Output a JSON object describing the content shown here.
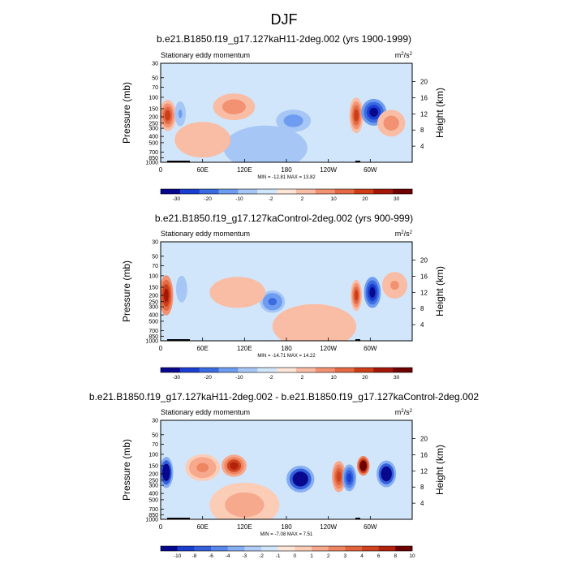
{
  "page_title": "DJF",
  "colors": {
    "diverging_main": [
      "#08088f",
      "#1a3fd0",
      "#3a6be0",
      "#6e9cf0",
      "#a6c6f5",
      "#d2e6fb",
      "#fde6d8",
      "#f9bca4",
      "#f29273",
      "#e36a45",
      "#cc3d18",
      "#a31708",
      "#6e0000"
    ],
    "diverging_diff": [
      "#08088f",
      "#1a3fd0",
      "#3460dc",
      "#5a88ea",
      "#86aef2",
      "#b1cdf7",
      "#d2e6fb",
      "#fde6d8",
      "#fbcdb7",
      "#f6a98c",
      "#ee8563",
      "#e2643d",
      "#cf431e",
      "#b3220c",
      "#6e0000"
    ]
  },
  "chart_data": [
    {
      "type": "contour",
      "title": "b.e21.B1850.f19_g17.127kaH11-2deg.002 (yrs 1900-1999)",
      "subtitle_left": "Stationary eddy momentum",
      "units": {
        "base": "m",
        "sup1": "2",
        "mid": "/s",
        "sup2": "2"
      },
      "ylabel": "Pressure (mb)",
      "ylabel_right": "Height (km)",
      "y_ticks": [
        "30",
        "50",
        "70",
        "100",
        "150",
        "200",
        "250",
        "300",
        "400",
        "500",
        "700",
        "850",
        "1000"
      ],
      "y_values": [
        30,
        50,
        70,
        100,
        150,
        200,
        250,
        300,
        400,
        500,
        700,
        850,
        1000
      ],
      "y_right_ticks": [
        "20",
        "16",
        "12",
        "8",
        "4"
      ],
      "y_right_values": [
        20,
        16,
        12,
        8,
        4
      ],
      "x_ticks": [
        "0",
        "60E",
        "120E",
        "180",
        "120W",
        "60W"
      ],
      "x_values": [
        0,
        60,
        120,
        180,
        240,
        300
      ],
      "xlim": [
        0,
        360
      ],
      "ylim": [
        1000,
        30
      ],
      "stats": "MIN = -12.81  MAX =  13.82",
      "levels": [
        "-30",
        "-20",
        "-10",
        "-2",
        "2",
        "10",
        "20",
        "30"
      ],
      "blobs": [
        {
          "lon": 10,
          "p": 190,
          "rlon": 12,
          "rp": 0.35,
          "amp": 10
        },
        {
          "lon": 28,
          "p": 180,
          "rlon": 8,
          "rp": 0.28,
          "amp": -4
        },
        {
          "lon": 105,
          "p": 140,
          "rlon": 30,
          "rp": 0.3,
          "amp": 5
        },
        {
          "lon": 190,
          "p": 230,
          "rlon": 25,
          "rp": 0.25,
          "amp": -6
        },
        {
          "lon": 280,
          "p": 190,
          "rlon": 10,
          "rp": 0.4,
          "amp": 12
        },
        {
          "lon": 305,
          "p": 170,
          "rlon": 18,
          "rp": 0.3,
          "amp": -13
        },
        {
          "lon": 330,
          "p": 250,
          "rlon": 20,
          "rp": 0.3,
          "amp": 5
        },
        {
          "lon": 150,
          "p": 600,
          "rlon": 60,
          "rp": 0.5,
          "amp": -2
        },
        {
          "lon": 60,
          "p": 450,
          "rlon": 40,
          "rp": 0.4,
          "amp": 3
        }
      ]
    },
    {
      "type": "contour",
      "title": "b.e21.B1850.f19_g17.127kaControl-2deg.002 (yrs 900-999)",
      "subtitle_left": "Stationary eddy momentum",
      "units": {
        "base": "m",
        "sup1": "2",
        "mid": "/s",
        "sup2": "2"
      },
      "ylabel": "Pressure (mb)",
      "ylabel_right": "Height (km)",
      "y_ticks": [
        "30",
        "50",
        "70",
        "100",
        "150",
        "200",
        "250",
        "300",
        "400",
        "500",
        "700",
        "850",
        "1000"
      ],
      "y_values": [
        30,
        50,
        70,
        100,
        150,
        200,
        250,
        300,
        400,
        500,
        700,
        850,
        1000
      ],
      "y_right_ticks": [
        "20",
        "16",
        "12",
        "8",
        "4"
      ],
      "y_right_values": [
        20,
        16,
        12,
        8,
        4
      ],
      "x_ticks": [
        "0",
        "60E",
        "120E",
        "180",
        "120W",
        "60W"
      ],
      "x_values": [
        0,
        60,
        120,
        180,
        240,
        300
      ],
      "xlim": [
        0,
        360
      ],
      "ylim": [
        1000,
        30
      ],
      "stats": "MIN = -14.71  MAX =  14.22",
      "levels": [
        "-30",
        "-20",
        "-10",
        "-2",
        "2",
        "10",
        "20",
        "30"
      ],
      "blobs": [
        {
          "lon": 8,
          "p": 200,
          "rlon": 10,
          "rp": 0.45,
          "amp": 13
        },
        {
          "lon": 30,
          "p": 160,
          "rlon": 8,
          "rp": 0.3,
          "amp": -3
        },
        {
          "lon": 160,
          "p": 250,
          "rlon": 18,
          "rp": 0.25,
          "amp": -7
        },
        {
          "lon": 110,
          "p": 180,
          "rlon": 40,
          "rp": 0.35,
          "amp": 3
        },
        {
          "lon": 280,
          "p": 200,
          "rlon": 8,
          "rp": 0.35,
          "amp": 10
        },
        {
          "lon": 303,
          "p": 180,
          "rlon": 12,
          "rp": 0.35,
          "amp": -14
        },
        {
          "lon": 335,
          "p": 140,
          "rlon": 18,
          "rp": 0.3,
          "amp": 4
        },
        {
          "lon": 220,
          "p": 600,
          "rlon": 60,
          "rp": 0.5,
          "amp": 2
        }
      ]
    },
    {
      "type": "contour",
      "title": "b.e21.B1850.f19_g17.127kaH11-2deg.002 - b.e21.B1850.f19_g17.127kaControl-2deg.002",
      "subtitle_left": "Stationary eddy momentum",
      "units": {
        "base": "m",
        "sup1": "2",
        "mid": "/s",
        "sup2": "2"
      },
      "ylabel": "Pressure (mb)",
      "ylabel_right": "Height (km)",
      "y_ticks": [
        "30",
        "50",
        "70",
        "100",
        "150",
        "200",
        "250",
        "300",
        "400",
        "500",
        "700",
        "850",
        "1000"
      ],
      "y_values": [
        30,
        50,
        70,
        100,
        150,
        200,
        250,
        300,
        400,
        500,
        700,
        850,
        1000
      ],
      "y_right_ticks": [
        "20",
        "16",
        "12",
        "8",
        "4"
      ],
      "y_right_values": [
        20,
        16,
        12,
        8,
        4
      ],
      "x_ticks": [
        "0",
        "60E",
        "120E",
        "180",
        "120W",
        "60W"
      ],
      "x_values": [
        0,
        60,
        120,
        180,
        240,
        300
      ],
      "xlim": [
        0,
        360
      ],
      "ylim": [
        1000,
        30
      ],
      "stats": "MIN = -7.08  MAX =  7.51",
      "levels": [
        "-10",
        "-8",
        "-6",
        "-4",
        "-3",
        "-2",
        "-1",
        "0",
        "1",
        "2",
        "3",
        "4",
        "6",
        "8",
        "10"
      ],
      "blobs": [
        {
          "lon": 8,
          "p": 190,
          "rlon": 10,
          "rp": 0.35,
          "amp": -6
        },
        {
          "lon": 60,
          "p": 160,
          "rlon": 25,
          "rp": 0.3,
          "amp": 2
        },
        {
          "lon": 105,
          "p": 150,
          "rlon": 18,
          "rp": 0.25,
          "amp": 5
        },
        {
          "lon": 200,
          "p": 240,
          "rlon": 20,
          "rp": 0.3,
          "amp": -6
        },
        {
          "lon": 255,
          "p": 220,
          "rlon": 10,
          "rp": 0.35,
          "amp": 4
        },
        {
          "lon": 270,
          "p": 230,
          "rlon": 10,
          "rp": 0.3,
          "amp": -4
        },
        {
          "lon": 290,
          "p": 150,
          "rlon": 9,
          "rp": 0.22,
          "amp": 7.5
        },
        {
          "lon": 323,
          "p": 200,
          "rlon": 14,
          "rp": 0.3,
          "amp": -6
        },
        {
          "lon": 120,
          "p": 600,
          "rlon": 50,
          "rp": 0.5,
          "amp": 1.2
        }
      ]
    }
  ]
}
